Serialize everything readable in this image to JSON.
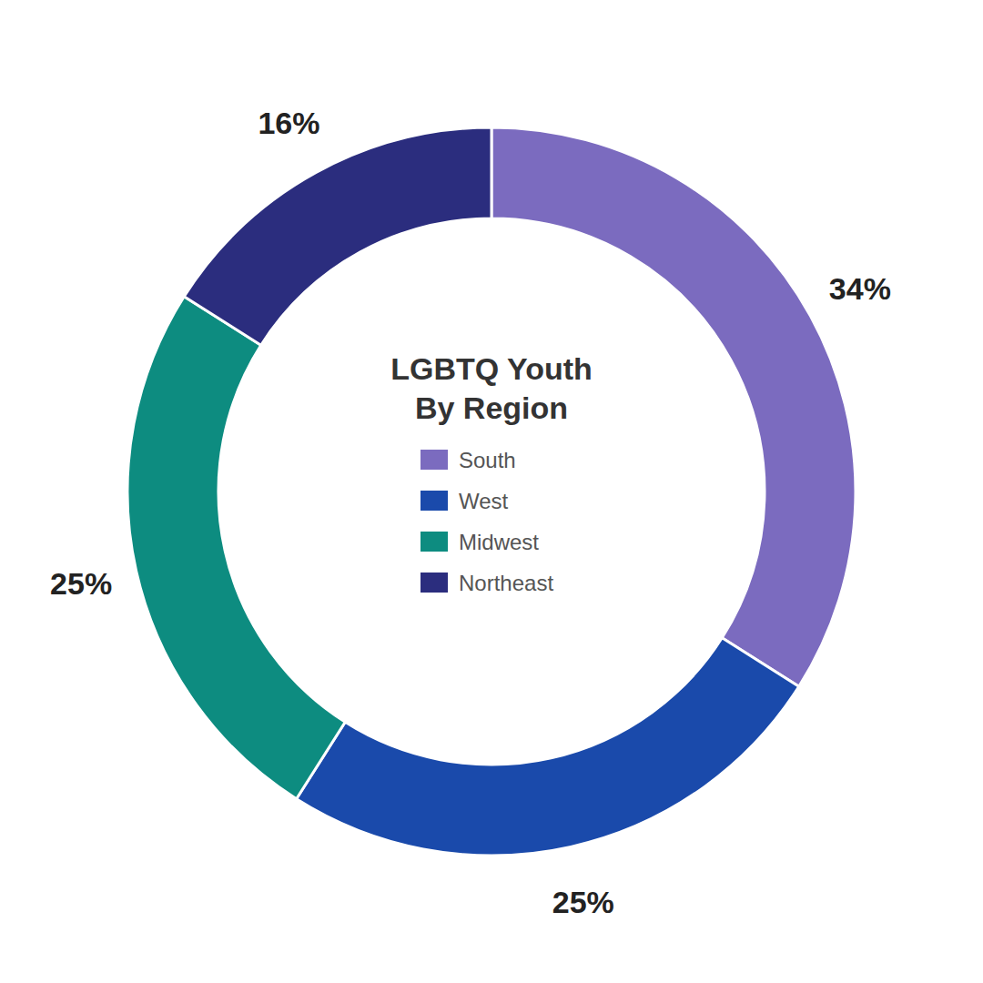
{
  "chart_data": {
    "type": "pie",
    "title": "LGBTQ Youth",
    "subtitle": "By Region",
    "categories": [
      "South",
      "West",
      "Midwest",
      "Northeast"
    ],
    "values": [
      34,
      25,
      25,
      16
    ],
    "value_labels": [
      "34%",
      "25%",
      "25%",
      "16%"
    ],
    "colors": [
      "#7b6bbf",
      "#1a4aab",
      "#0d8c80",
      "#2b2d7e"
    ],
    "data_labels": true,
    "legend": "center"
  }
}
